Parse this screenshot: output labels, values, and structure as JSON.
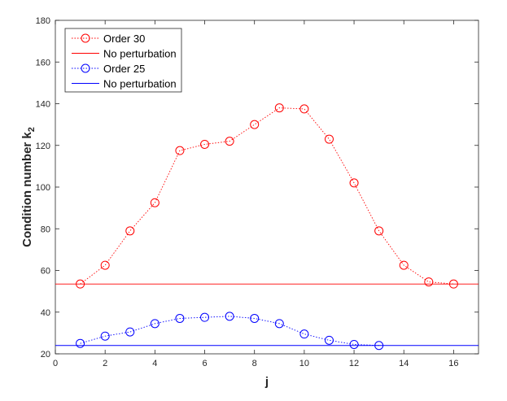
{
  "chart_data": {
    "type": "line",
    "xlabel": "j",
    "ylabel_main": "Condition number k",
    "ylabel_sub": "2",
    "xlim": [
      0,
      17
    ],
    "ylim": [
      20,
      180
    ],
    "xticks": [
      0,
      2,
      4,
      6,
      8,
      10,
      12,
      14,
      16
    ],
    "yticks": [
      20,
      40,
      60,
      80,
      100,
      120,
      140,
      160,
      180
    ],
    "grid": false,
    "legend_position": "top-left",
    "series": [
      {
        "name": "Order 30",
        "style": "dotted-circle",
        "color": "#ff0000",
        "x": [
          1,
          2,
          3,
          4,
          5,
          6,
          7,
          8,
          9,
          10,
          11,
          12,
          13,
          14,
          15,
          16
        ],
        "y": [
          53.5,
          62.5,
          79,
          92.5,
          117.5,
          120.5,
          122,
          130,
          138,
          137.5,
          123,
          102,
          79,
          62.5,
          54.5,
          53.5
        ]
      },
      {
        "name": "No perturbation",
        "style": "solid",
        "color": "#ff0000",
        "x": [
          0,
          17
        ],
        "y": [
          53.5,
          53.5
        ]
      },
      {
        "name": "Order 25",
        "style": "dotted-circle",
        "color": "#0000ff",
        "x": [
          1,
          2,
          3,
          4,
          5,
          6,
          7,
          8,
          9,
          10,
          11,
          12,
          13
        ],
        "y": [
          25,
          28.5,
          30.5,
          34.5,
          37,
          37.5,
          38,
          37,
          34.5,
          29.5,
          26.5,
          24.5,
          24
        ]
      },
      {
        "name": "No perturbation",
        "style": "solid",
        "color": "#0000ff",
        "x": [
          0,
          17
        ],
        "y": [
          24,
          24
        ]
      }
    ]
  }
}
